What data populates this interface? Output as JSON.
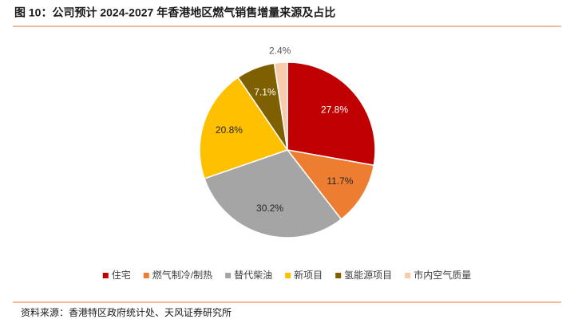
{
  "chart_data": {
    "type": "pie",
    "title": "图 10：公司预计 2024-2027 年香港地区燃气销售增量来源及占比",
    "source": "资料来源：香港特区政府统计处、天风证券研究所",
    "categories": [
      "住宅",
      "燃气制冷/制热",
      "替代柴油",
      "新项目",
      "氢能源项目",
      "市内空气质量"
    ],
    "values": [
      27.8,
      11.7,
      30.2,
      20.8,
      7.1,
      2.4
    ],
    "value_labels": [
      "27.8%",
      "11.7%",
      "30.2%",
      "20.8%",
      "7.1%",
      "2.4%"
    ],
    "colors": [
      "#c00000",
      "#ed7d31",
      "#a5a5a5",
      "#ffc000",
      "#7f6000",
      "#f8cbad"
    ]
  }
}
